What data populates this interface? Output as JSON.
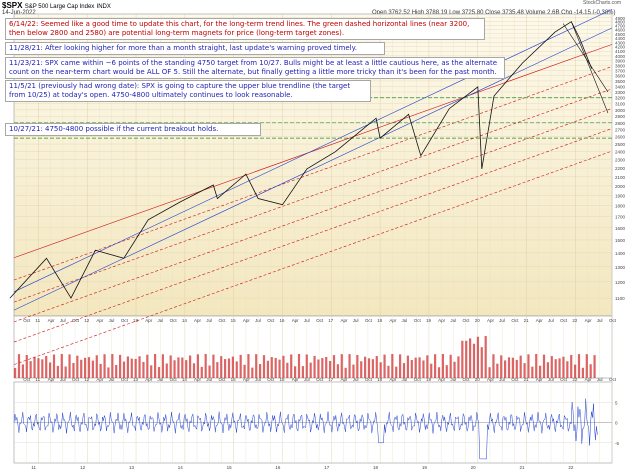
{
  "header": {
    "symbol": "$SPX",
    "name": "S&P 500 Large Cap Index",
    "exchange": "INDX",
    "date": "14-Jun-2022",
    "ohlc": "Open 3762.52  High 3788.19  Low 3725.80  Close 3735.48  Volume 2.6B  Chg -14.15 (-0.38%)",
    "site": "StockCharts.com"
  },
  "annotations": [
    {
      "color": "#c00000",
      "text": "6/14/22:  Seemed like a good time to update this chart, for the long-term trend lines.  The green dashed horizontal lines (near 3200, then below 2800 and 2580) are potential long-term magnets for price (long-term target zones)."
    },
    {
      "color": "#1f1fb0",
      "text": "11/28/21:  After looking higher for more than a month straight, last update's warning proved timely."
    },
    {
      "color": "#1f1fb0",
      "text": "11/23/21:  SPX came within ~6 points of the standing 4750 target from 10/27.  Bulls might be at least a little cautious here, as the alternate count on the near-term chart would be ALL OF 5.  Still the alternate, but finally getting a little more tricky than it's been for the past month."
    },
    {
      "color": "#1f1fb0",
      "text": "11/5/21 (previously had wrong date):  SPX is going to capture the upper blue trendline (the target from 10/25) at today's open.  4750-4800 ultimately continues to look reasonable."
    },
    {
      "color": "#1f1fb0",
      "text": "10/27/21:  4750-4800 possible if the current breakout holds."
    }
  ],
  "chart_data": [
    {
      "type": "line",
      "panel": "price",
      "title": "$SPX S&P 500 Large Cap Index",
      "scale": "log",
      "x": [
        "2010-07",
        "2011-04",
        "2011-10",
        "2012-04",
        "2012-11",
        "2013-05",
        "2014-01",
        "2014-09",
        "2014-10",
        "2015-05",
        "2015-08",
        "2016-02",
        "2016-08",
        "2017-03",
        "2018-01",
        "2018-02",
        "2018-09",
        "2018-12",
        "2019-07",
        "2020-02",
        "2020-03",
        "2020-06",
        "2021-01",
        "2021-09",
        "2022-01",
        "2022-03",
        "2022-06"
      ],
      "series": [
        {
          "values": [
            1100,
            1360,
            1100,
            1420,
            1360,
            1670,
            1840,
            2010,
            1870,
            2130,
            1870,
            1810,
            2190,
            2400,
            2870,
            2580,
            2930,
            2350,
            3020,
            3390,
            2190,
            3230,
            3850,
            4540,
            4800,
            4400,
            3735
          ]
        }
      ],
      "ylim": [
        1000,
        5000
      ],
      "yticks": [
        1100,
        1200,
        1300,
        1400,
        1500,
        1600,
        1700,
        1800,
        1900,
        2000,
        2100,
        2200,
        2300,
        2400,
        2500,
        2600,
        2700,
        2800,
        2900,
        3000,
        3100,
        3200,
        3300,
        3400,
        3500,
        3600,
        3700,
        3800,
        3900,
        4000,
        4100,
        4200,
        4300,
        4400,
        4500,
        4600,
        4700,
        4800,
        4900
      ],
      "xticks": [
        "Oct",
        "11",
        "Apr",
        "Jul",
        "Oct",
        "12",
        "Apr",
        "Jul",
        "Oct",
        "13",
        "Apr",
        "Jul",
        "Oct",
        "14",
        "Apr",
        "Jul",
        "Oct",
        "15",
        "Apr",
        "Jul",
        "Oct",
        "16",
        "Apr",
        "Jul",
        "Oct",
        "17",
        "Apr",
        "Jul",
        "Oct",
        "18",
        "Apr",
        "Jul",
        "Oct",
        "19",
        "Apr",
        "Jul",
        "Oct",
        "20",
        "Apr",
        "Jul",
        "Oct",
        "21",
        "Apr",
        "Jul",
        "Oct",
        "22",
        "Apr",
        "Jul",
        "Oct"
      ],
      "horizontal_levels": [
        3200,
        2800,
        2580
      ],
      "grid": true
    },
    {
      "type": "bar",
      "panel": "volume",
      "label": "volume"
    },
    {
      "type": "line",
      "panel": "indicator",
      "ylim": [
        -10,
        10
      ],
      "yticks": [
        -5,
        0,
        5
      ],
      "xticks": [
        "11",
        "12",
        "13",
        "14",
        "15",
        "16",
        "17",
        "18",
        "19",
        "20",
        "21",
        "22"
      ]
    }
  ]
}
